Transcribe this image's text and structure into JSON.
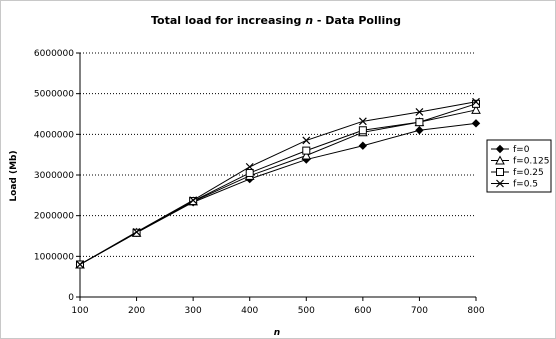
{
  "chart_data": {
    "type": "line",
    "title_prefix": "Total load for increasing ",
    "title_italic": "n",
    "title_suffix": " - Data Polling",
    "xlabel": "n",
    "ylabel": "Load (Mb)",
    "x": [
      100,
      200,
      300,
      400,
      500,
      600,
      700,
      800
    ],
    "xlim": [
      100,
      800
    ],
    "ylim": [
      0,
      6000000
    ],
    "yticks": [
      0,
      1000000,
      2000000,
      3000000,
      4000000,
      5000000,
      6000000
    ],
    "ytick_labels": [
      "0",
      "1000000",
      "2000000",
      "3000000",
      "4000000",
      "5000000",
      "6000000"
    ],
    "xtick_labels": [
      "100",
      "200",
      "300",
      "400",
      "500",
      "600",
      "700",
      "800"
    ],
    "grid": "horizontal-dotted",
    "legend_position": "right",
    "series": [
      {
        "name": "f=0",
        "marker": "diamond",
        "values": [
          800000,
          1580000,
          2330000,
          2900000,
          3380000,
          3720000,
          4100000,
          4270000
        ]
      },
      {
        "name": "f=0.125",
        "marker": "triangle",
        "values": [
          800000,
          1580000,
          2350000,
          2980000,
          3480000,
          4050000,
          4300000,
          4600000
        ]
      },
      {
        "name": "f=0.25",
        "marker": "square",
        "values": [
          800000,
          1580000,
          2360000,
          3050000,
          3600000,
          4100000,
          4300000,
          4750000
        ]
      },
      {
        "name": "f=0.5",
        "marker": "x",
        "values": [
          800000,
          1600000,
          2380000,
          3200000,
          3850000,
          4320000,
          4550000,
          4800000
        ]
      }
    ]
  }
}
